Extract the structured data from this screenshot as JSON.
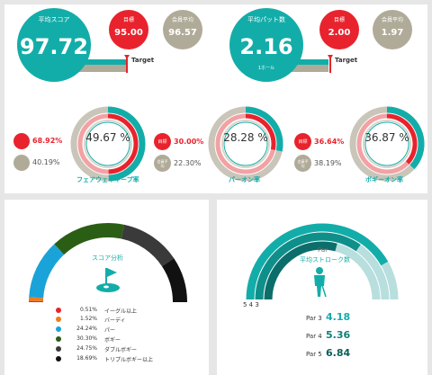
{
  "colors": {
    "teal": "#13ada9",
    "red": "#e8232d",
    "gray": "#b0ab98",
    "light_red": "#f2a2a4",
    "dark_teal": "#0f807b"
  },
  "score": {
    "label": "平均スコア",
    "value": "97.72",
    "goal_label": "目標",
    "goal_value": "95.00",
    "member_label": "会員平均",
    "member_value": "96.57",
    "target_label": "Target"
  },
  "putt": {
    "label": "平均パット数",
    "value": "2.16",
    "sub": "1ホール",
    "goal_label": "目標",
    "goal_value": "2.00",
    "member_label": "会員平均",
    "member_value": "1.97",
    "target_label": "Target"
  },
  "rates": [
    {
      "goal_value": "68.92%",
      "member_value": "40.19%",
      "percent": "49.67 %",
      "fraction": 0.4967,
      "title": "フェアウェイキープ率"
    },
    {
      "goal_label": "目標",
      "goal_value": "30.00%",
      "member_label": "会員平均",
      "member_value": "22.30%",
      "percent": "28.28 %",
      "fraction": 0.2828,
      "title": "パーオン率"
    },
    {
      "goal_label": "目標",
      "goal_value": "36.64%",
      "member_label": "会員平均",
      "member_value": "38.19%",
      "percent": "36.87 %",
      "fraction": 0.3687,
      "title": "ボギーオン率"
    }
  ],
  "score_analysis": {
    "title": "スコア分析",
    "legend": [
      {
        "value": "0.51%",
        "label": "イーグル以上",
        "color": "#e8232d"
      },
      {
        "value": "1.52%",
        "label": "バーディ",
        "color": "#f07b1a"
      },
      {
        "value": "24.24%",
        "label": "パー",
        "color": "#1aa3d9"
      },
      {
        "value": "30.30%",
        "label": "ボギー",
        "color": "#2a5e14"
      },
      {
        "value": "24.75%",
        "label": "ダブルボギー",
        "color": "#3a3a3a"
      },
      {
        "value": "18.69%",
        "label": "トリプルボギー以上",
        "color": "#111111"
      }
    ]
  },
  "stroke_analysis": {
    "par_label": "Par",
    "title": "平均ストローク数",
    "scale_labels": "5 4 3",
    "rows": [
      {
        "label": "Par 3",
        "value": "4.18"
      },
      {
        "label": "Par 4",
        "value": "5.36"
      },
      {
        "label": "Par 5",
        "value": "6.84"
      }
    ]
  }
}
